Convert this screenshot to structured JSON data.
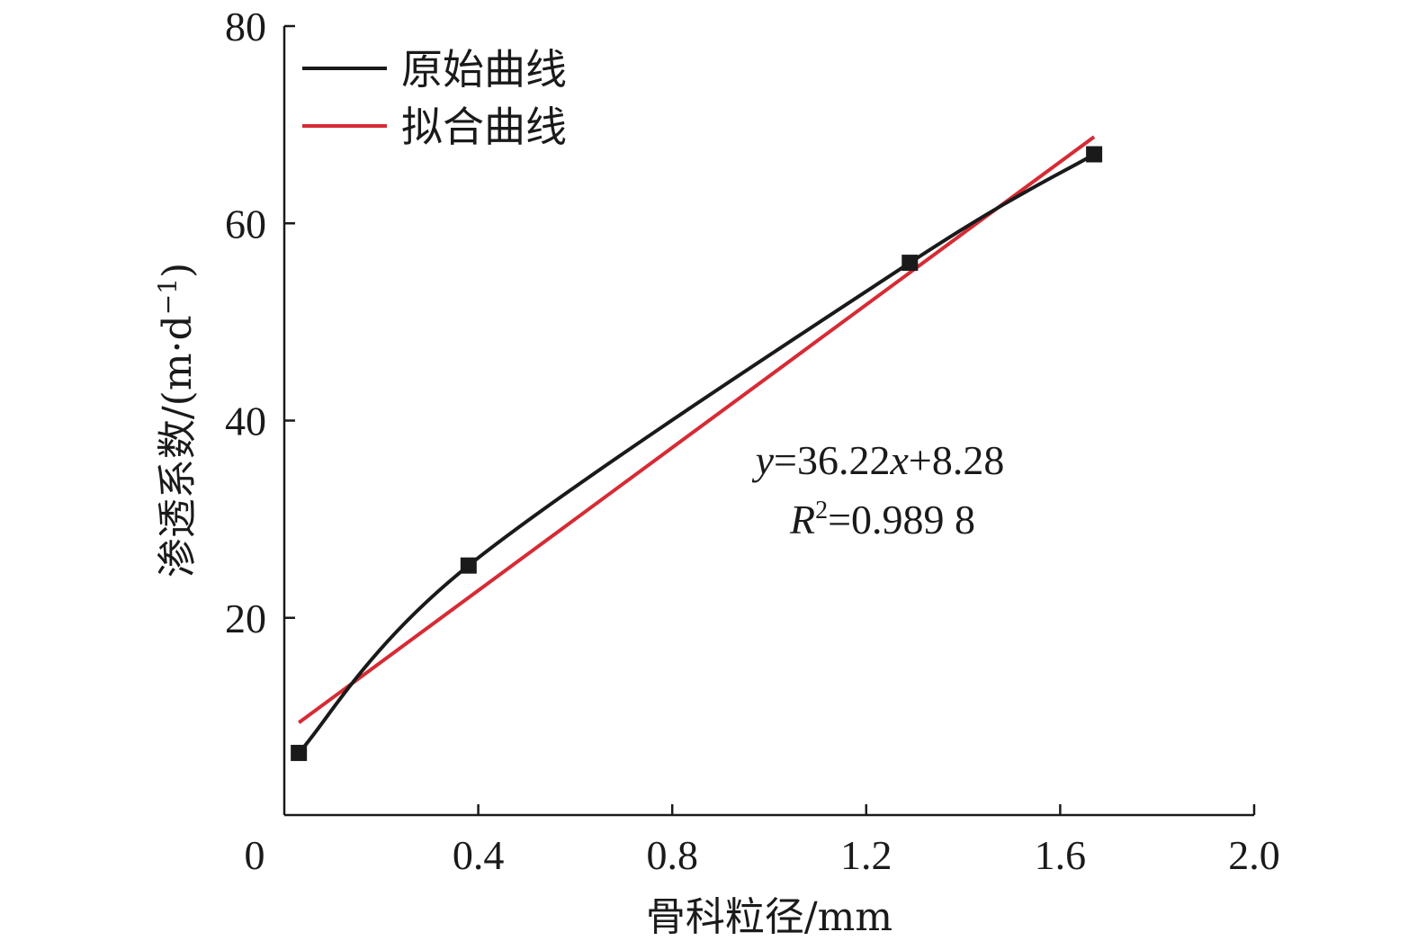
{
  "chart_data": {
    "type": "line",
    "xlabel": "骨科粒径/mm",
    "ylabel_main": "渗透系数/(m·d",
    "ylabel_sup": "−1",
    "ylabel_end": ")",
    "xlim": [
      0,
      2.0
    ],
    "ylim": [
      0,
      80
    ],
    "x_ticks": [
      0.4,
      0.8,
      1.2,
      1.6,
      2.0
    ],
    "x_tick_labels": [
      "0.4",
      "0.8",
      "1.2",
      "1.6",
      "2.0"
    ],
    "y_ticks": [
      20,
      40,
      60,
      80
    ],
    "y_tick_labels": [
      "20",
      "40",
      "60",
      "80"
    ],
    "origin_label": "0",
    "grid": false,
    "legend_position": "top-left",
    "series": [
      {
        "name": "原始曲线",
        "color": "#1a1a1a",
        "marker": "square",
        "x": [
          0.03,
          0.38,
          1.29,
          1.67
        ],
        "y": [
          6.3,
          25.3,
          56.0,
          67.0
        ]
      },
      {
        "name": "拟合曲线",
        "color": "#d62b35",
        "marker": "none",
        "x": [
          0.03,
          1.67
        ],
        "y": [
          9.37,
          68.77
        ]
      }
    ],
    "annotation": {
      "line1": {
        "y_var": "y",
        "middle": "=36.22",
        "x_var": "x",
        "end": "+8.28"
      },
      "line2": {
        "r_var": "R",
        "sup": "2",
        "end": "=0.989 8"
      }
    }
  }
}
